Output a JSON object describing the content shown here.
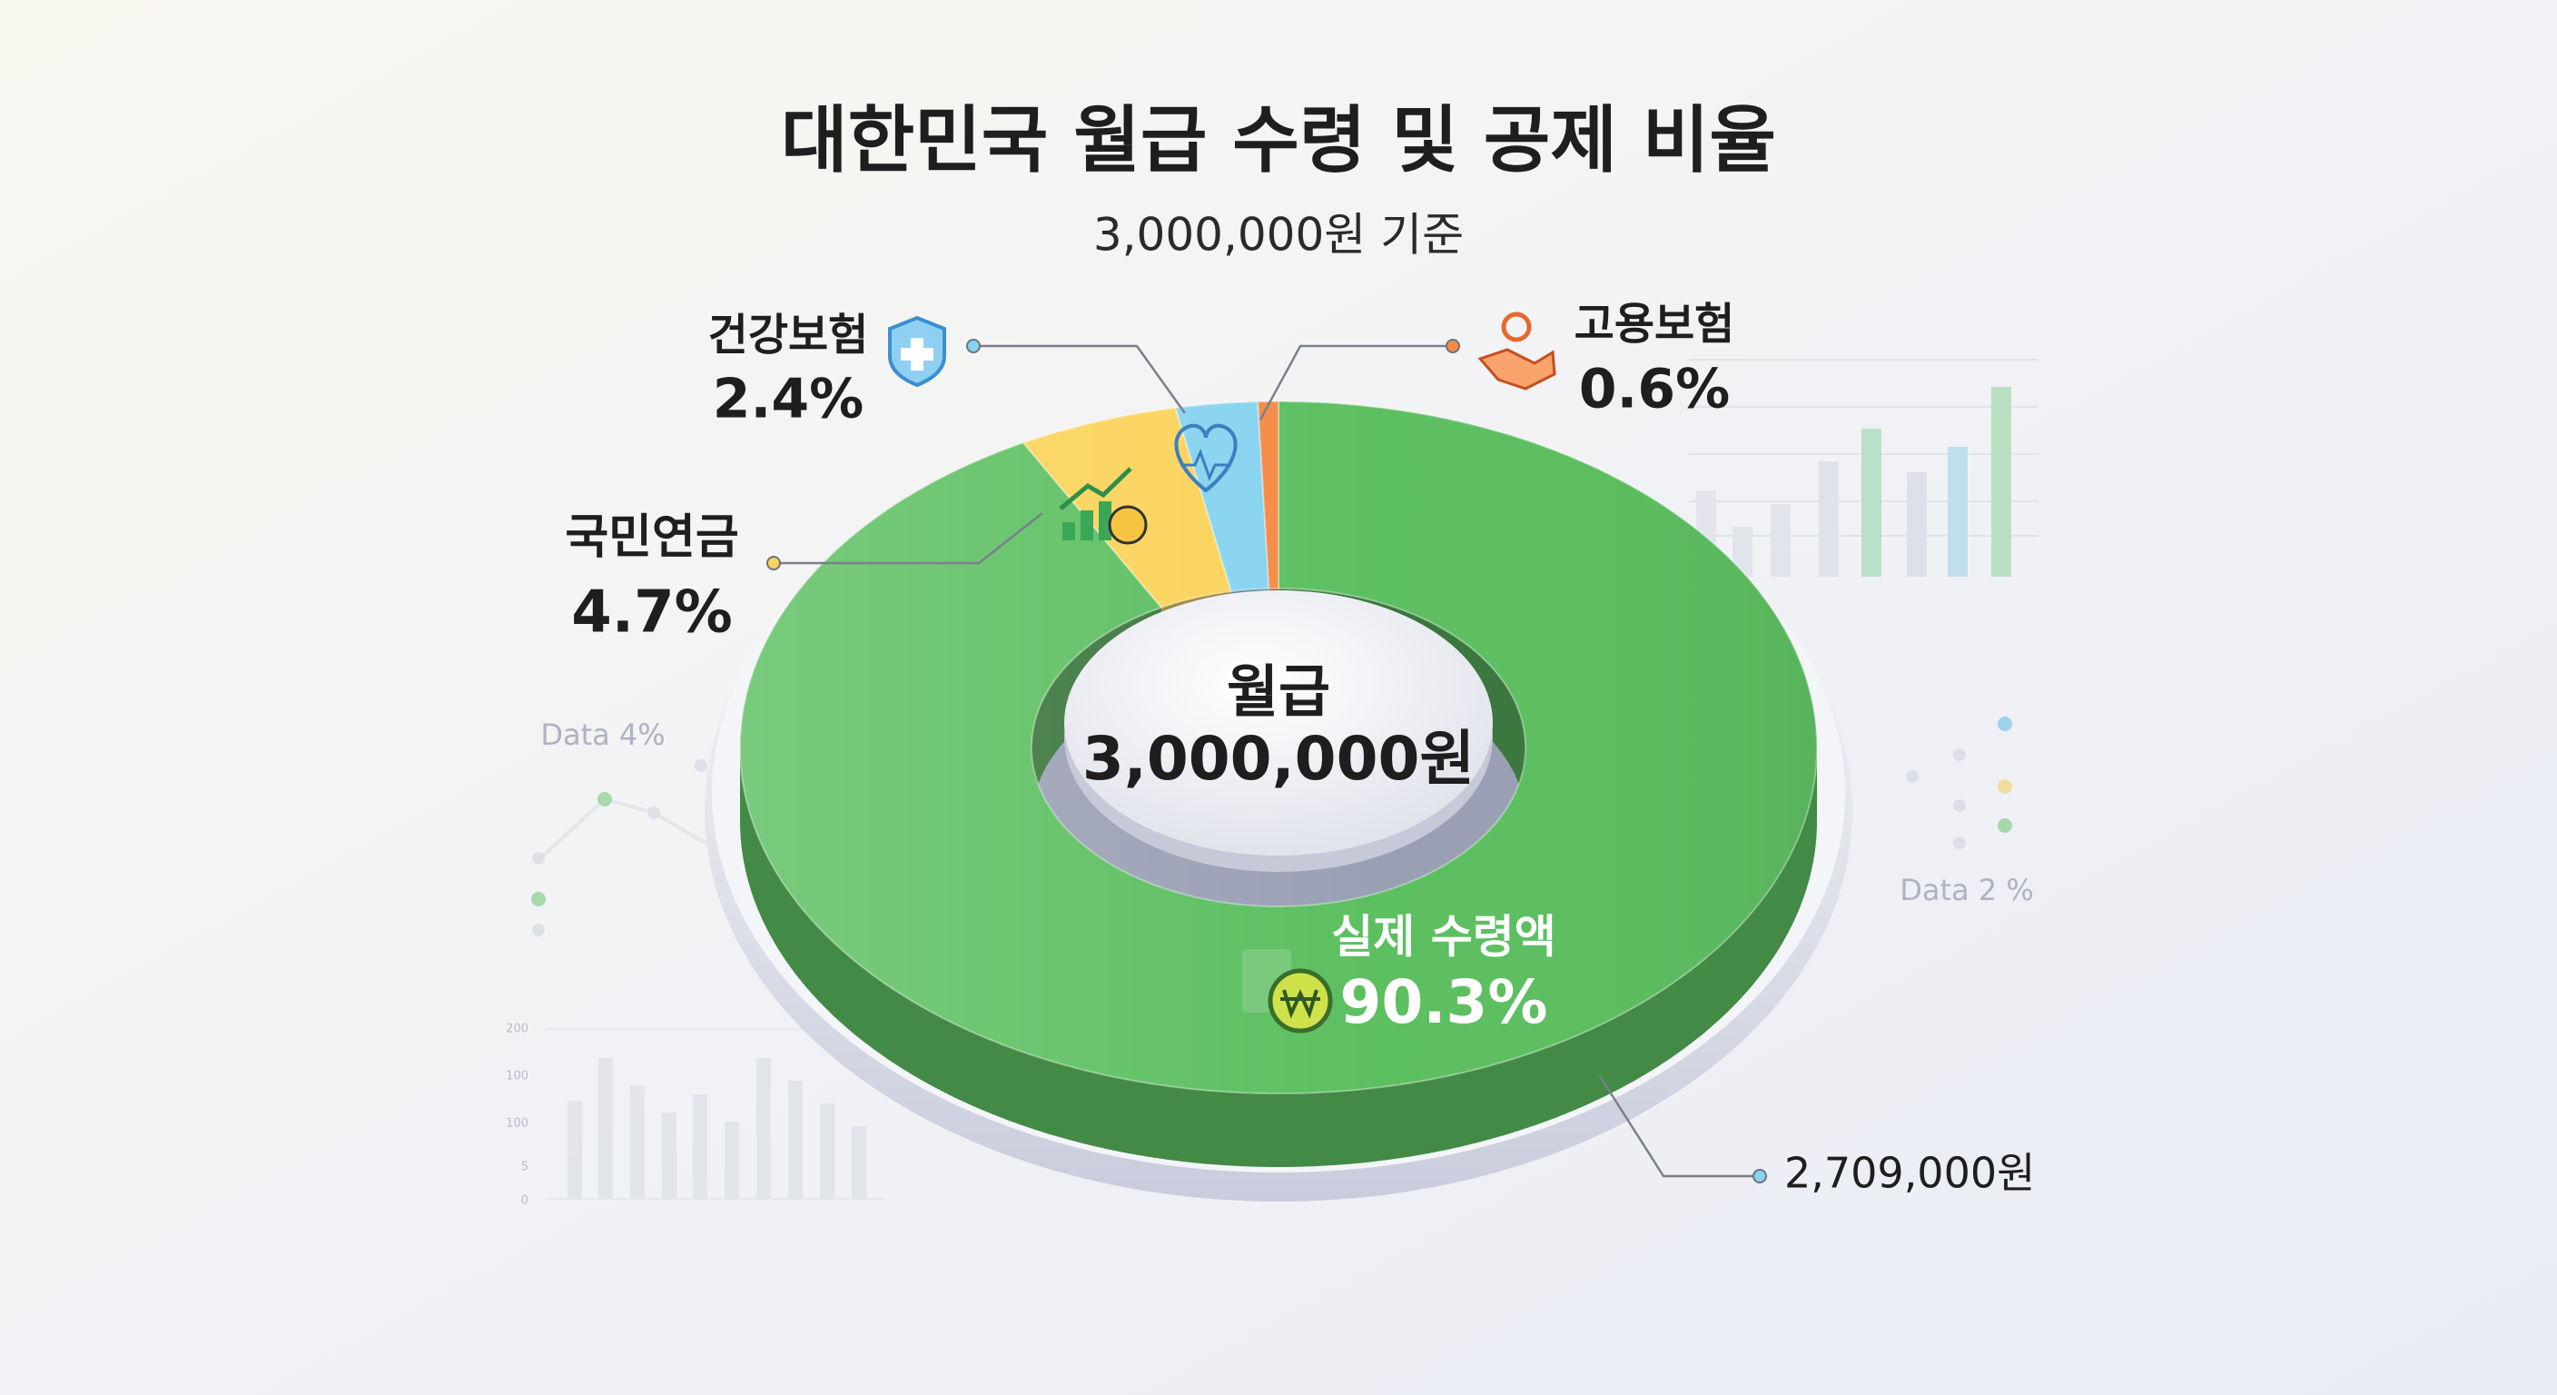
{
  "chart_data": {
    "type": "pie",
    "title": "대한민국 월급 수령 및 공제 비율",
    "subtitle": "3,000,000원 기준",
    "categories": [
      "실제 수령액",
      "국민연금",
      "건강보험",
      "고용보험"
    ],
    "values": [
      90.3,
      4.7,
      2.4,
      0.6
    ],
    "value_labels": [
      "90.3%",
      "4.7%",
      "2.4%",
      "0.6%"
    ],
    "colors": [
      "#5cbf60",
      "#fbd35a",
      "#86d3ef",
      "#f58a45"
    ],
    "donut": true,
    "center_label": [
      "월급",
      "3,000,000원"
    ],
    "annotations": [
      "2,709,000원"
    ],
    "decorations": {
      "texts": [
        "Data 4%",
        "Data 2 %"
      ],
      "ticks": [
        "200",
        "100",
        "100",
        "5",
        "0"
      ]
    }
  }
}
